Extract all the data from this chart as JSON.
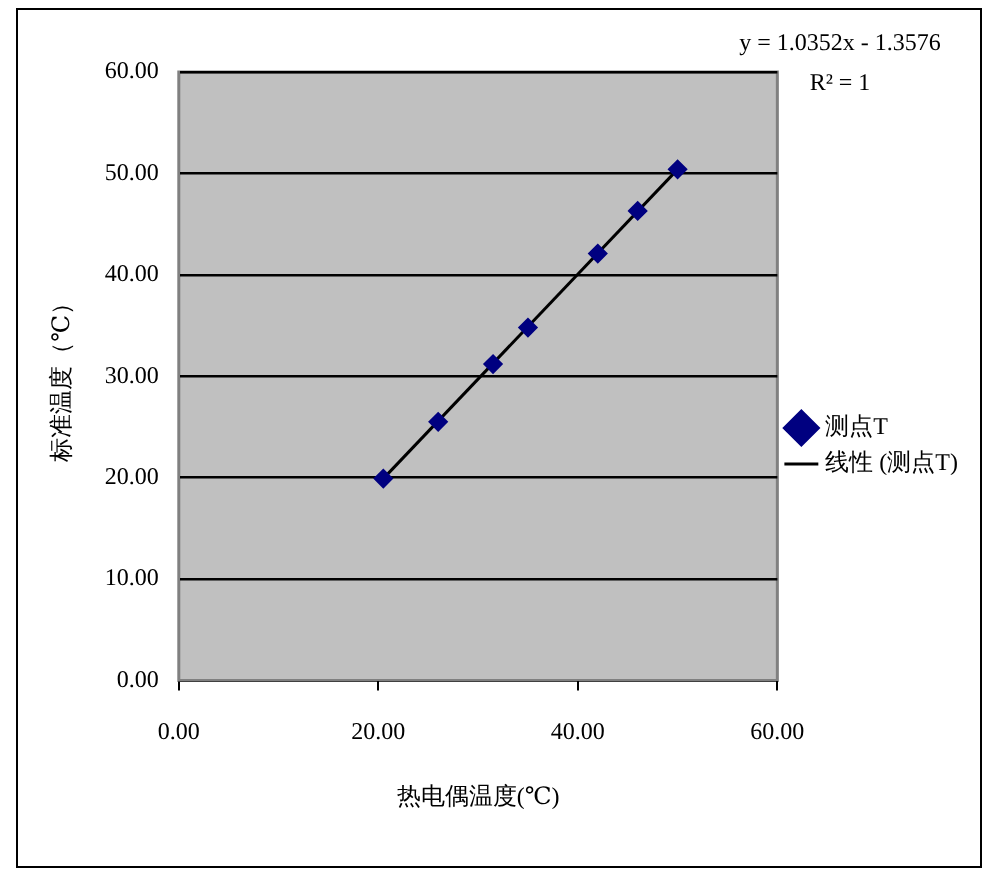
{
  "chart_data": {
    "type": "scatter",
    "xlabel": "热电偶温度(℃)",
    "ylabel": "标准温度（℃）",
    "xlim": [
      0,
      60
    ],
    "ylim": [
      0,
      60
    ],
    "xticks": [
      {
        "value": 0,
        "label": "0.00"
      },
      {
        "value": 20,
        "label": "20.00"
      },
      {
        "value": 40,
        "label": "40.00"
      },
      {
        "value": 60,
        "label": "60.00"
      }
    ],
    "yticks": [
      {
        "value": 0,
        "label": "0.00"
      },
      {
        "value": 10,
        "label": "10.00"
      },
      {
        "value": 20,
        "label": "20.00"
      },
      {
        "value": 30,
        "label": "30.00"
      },
      {
        "value": 40,
        "label": "40.00"
      },
      {
        "value": 50,
        "label": "50.00"
      },
      {
        "value": 60,
        "label": "60.00"
      }
    ],
    "grid": "y",
    "legend": "right",
    "annotations": [
      "y = 1.0352x - 1.3576",
      "R² = 1"
    ],
    "series": [
      {
        "name": "测点T",
        "type": "scatter",
        "color": "#000080",
        "marker": "diamond",
        "x": [
          20.5,
          26,
          31.5,
          35,
          42,
          46,
          50
        ],
        "values": [
          19.9,
          25.5,
          31.2,
          34.8,
          42.1,
          46.3,
          50.4
        ]
      },
      {
        "name": "线性 (测点T)",
        "type": "line",
        "color": "#000000",
        "marker": "none",
        "x": [
          20.5,
          50
        ],
        "values": [
          19.9,
          50.4
        ]
      }
    ]
  }
}
